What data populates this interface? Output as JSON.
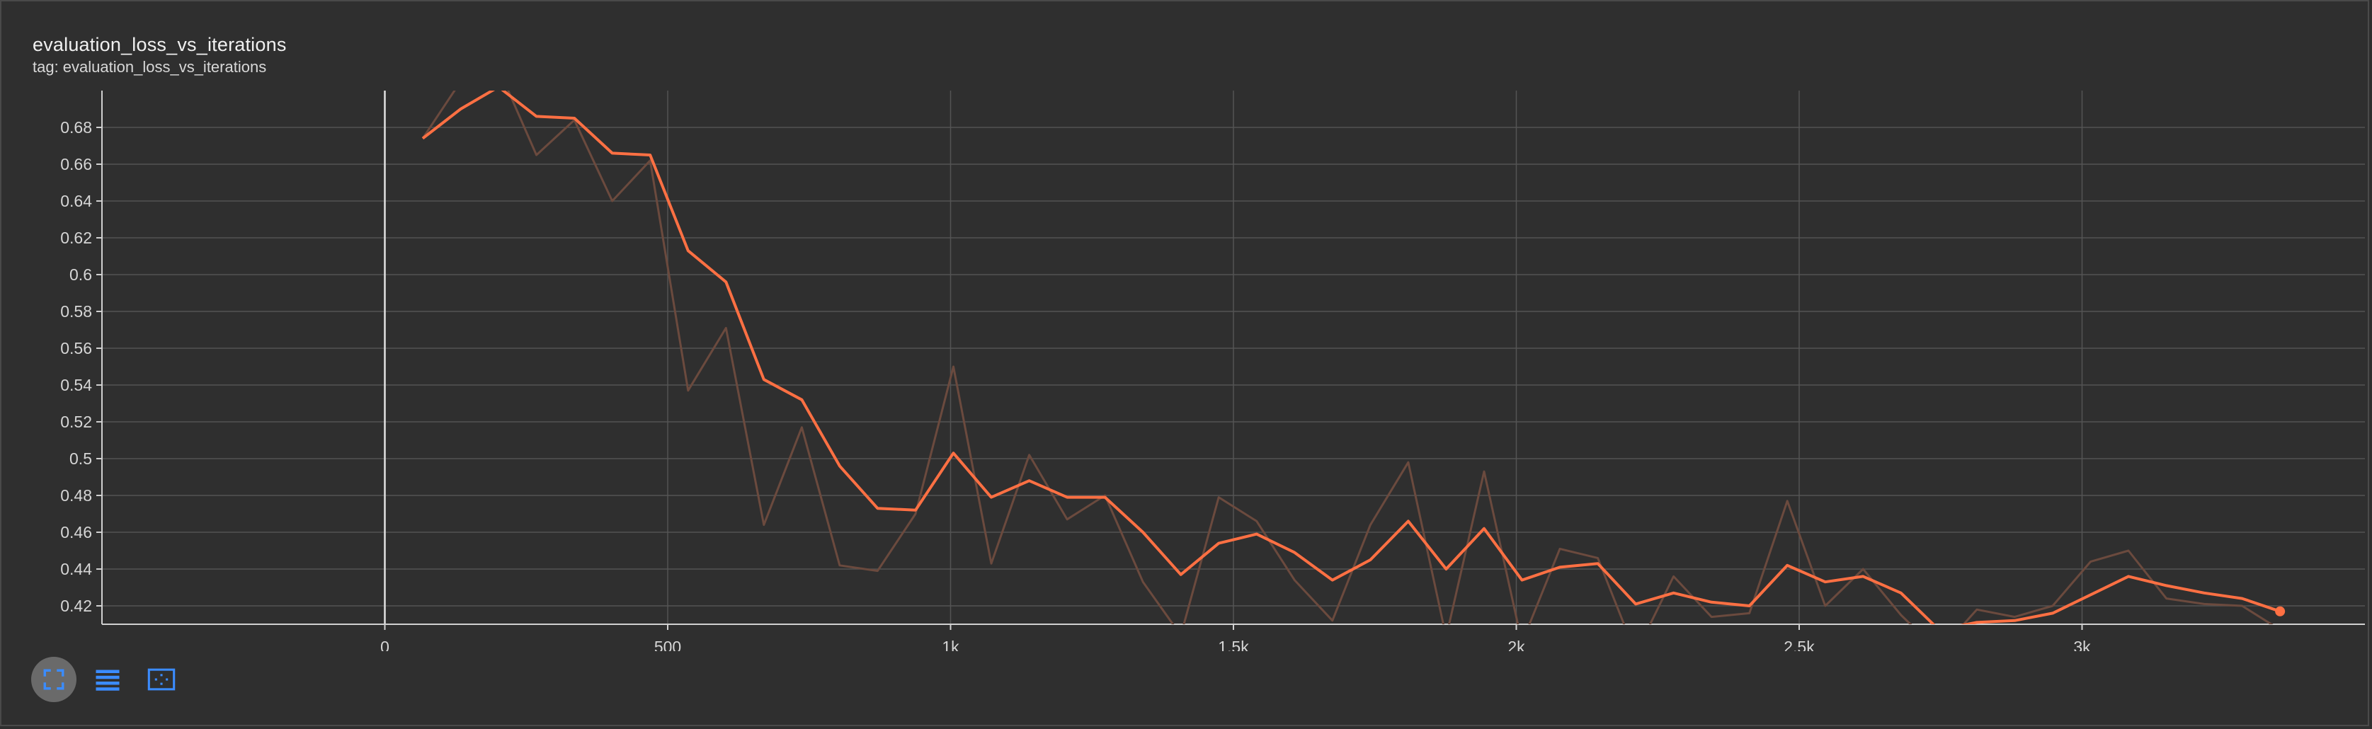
{
  "card": {
    "title": "evaluation_loss_vs_iterations",
    "tag": "tag: evaluation_loss_vs_iterations"
  },
  "toolbar": {
    "buttons": [
      {
        "icon": "fullscreen-icon",
        "active": true
      },
      {
        "icon": "data-table-icon",
        "active": false
      },
      {
        "icon": "fit-domain-icon",
        "active": false
      }
    ]
  },
  "colors": {
    "background": "#2f2f2f",
    "smoothed": "#ff7043",
    "raw": "#6b4a3e",
    "grid": "#545454",
    "axis": "#d0d0d0"
  },
  "chart_data": {
    "type": "line",
    "title": "evaluation_loss_vs_iterations",
    "xlabel": "",
    "ylabel": "",
    "xlim": [
      -500,
      3500
    ],
    "ylim": [
      0.41,
      0.7
    ],
    "grid": true,
    "x_ticks": [
      0,
      500,
      1000,
      1500,
      2000,
      2500,
      3000
    ],
    "x_tick_labels": [
      "0",
      "500",
      "1k",
      "1.5k",
      "2k",
      "2.5k",
      "3k"
    ],
    "y_ticks": [
      0.42,
      0.44,
      0.46,
      0.48,
      0.5,
      0.52,
      0.54,
      0.56,
      0.58,
      0.6,
      0.62,
      0.64,
      0.66,
      0.68
    ],
    "y_tick_labels": [
      "0.42",
      "0.44",
      "0.46",
      "0.48",
      "0.5",
      "0.52",
      "0.54",
      "0.56",
      "0.58",
      "0.6",
      "0.62",
      "0.64",
      "0.66",
      "0.68"
    ],
    "x": [
      67,
      134,
      201,
      268,
      335,
      402,
      469,
      536,
      603,
      670,
      737,
      804,
      871,
      938,
      1005,
      1072,
      1139,
      1206,
      1273,
      1340,
      1407,
      1474,
      1541,
      1608,
      1675,
      1742,
      1809,
      1876,
      1943,
      2010,
      2077,
      2144,
      2211,
      2278,
      2345,
      2412,
      2479,
      2546,
      2613,
      2680,
      2747,
      2814,
      2881,
      2948,
      3015,
      3082,
      3149,
      3216,
      3283,
      3350
    ],
    "series": [
      {
        "role": "raw",
        "values": [
          0.674,
          0.705,
          0.712,
          0.665,
          0.684,
          0.64,
          0.662,
          0.537,
          0.571,
          0.464,
          0.517,
          0.442,
          0.439,
          0.47,
          0.55,
          0.443,
          0.502,
          0.467,
          0.48,
          0.433,
          0.404,
          0.479,
          0.466,
          0.434,
          0.412,
          0.464,
          0.498,
          0.403,
          0.493,
          0.4,
          0.451,
          0.446,
          0.394,
          0.436,
          0.414,
          0.416,
          0.477,
          0.42,
          0.44,
          0.415,
          0.395,
          0.418,
          0.414,
          0.42,
          0.444,
          0.45,
          0.424,
          0.421,
          0.42,
          0.407
        ]
      },
      {
        "role": "smoothed",
        "values": [
          0.674,
          0.69,
          0.702,
          0.686,
          0.685,
          0.666,
          0.665,
          0.613,
          0.596,
          0.543,
          0.532,
          0.496,
          0.473,
          0.472,
          0.503,
          0.479,
          0.488,
          0.479,
          0.479,
          0.46,
          0.437,
          0.454,
          0.459,
          0.449,
          0.434,
          0.445,
          0.466,
          0.44,
          0.462,
          0.434,
          0.441,
          0.443,
          0.421,
          0.427,
          0.422,
          0.42,
          0.442,
          0.433,
          0.436,
          0.427,
          0.407,
          0.411,
          0.412,
          0.416,
          0.426,
          0.436,
          0.431,
          0.427,
          0.424,
          0.417
        ]
      }
    ]
  }
}
